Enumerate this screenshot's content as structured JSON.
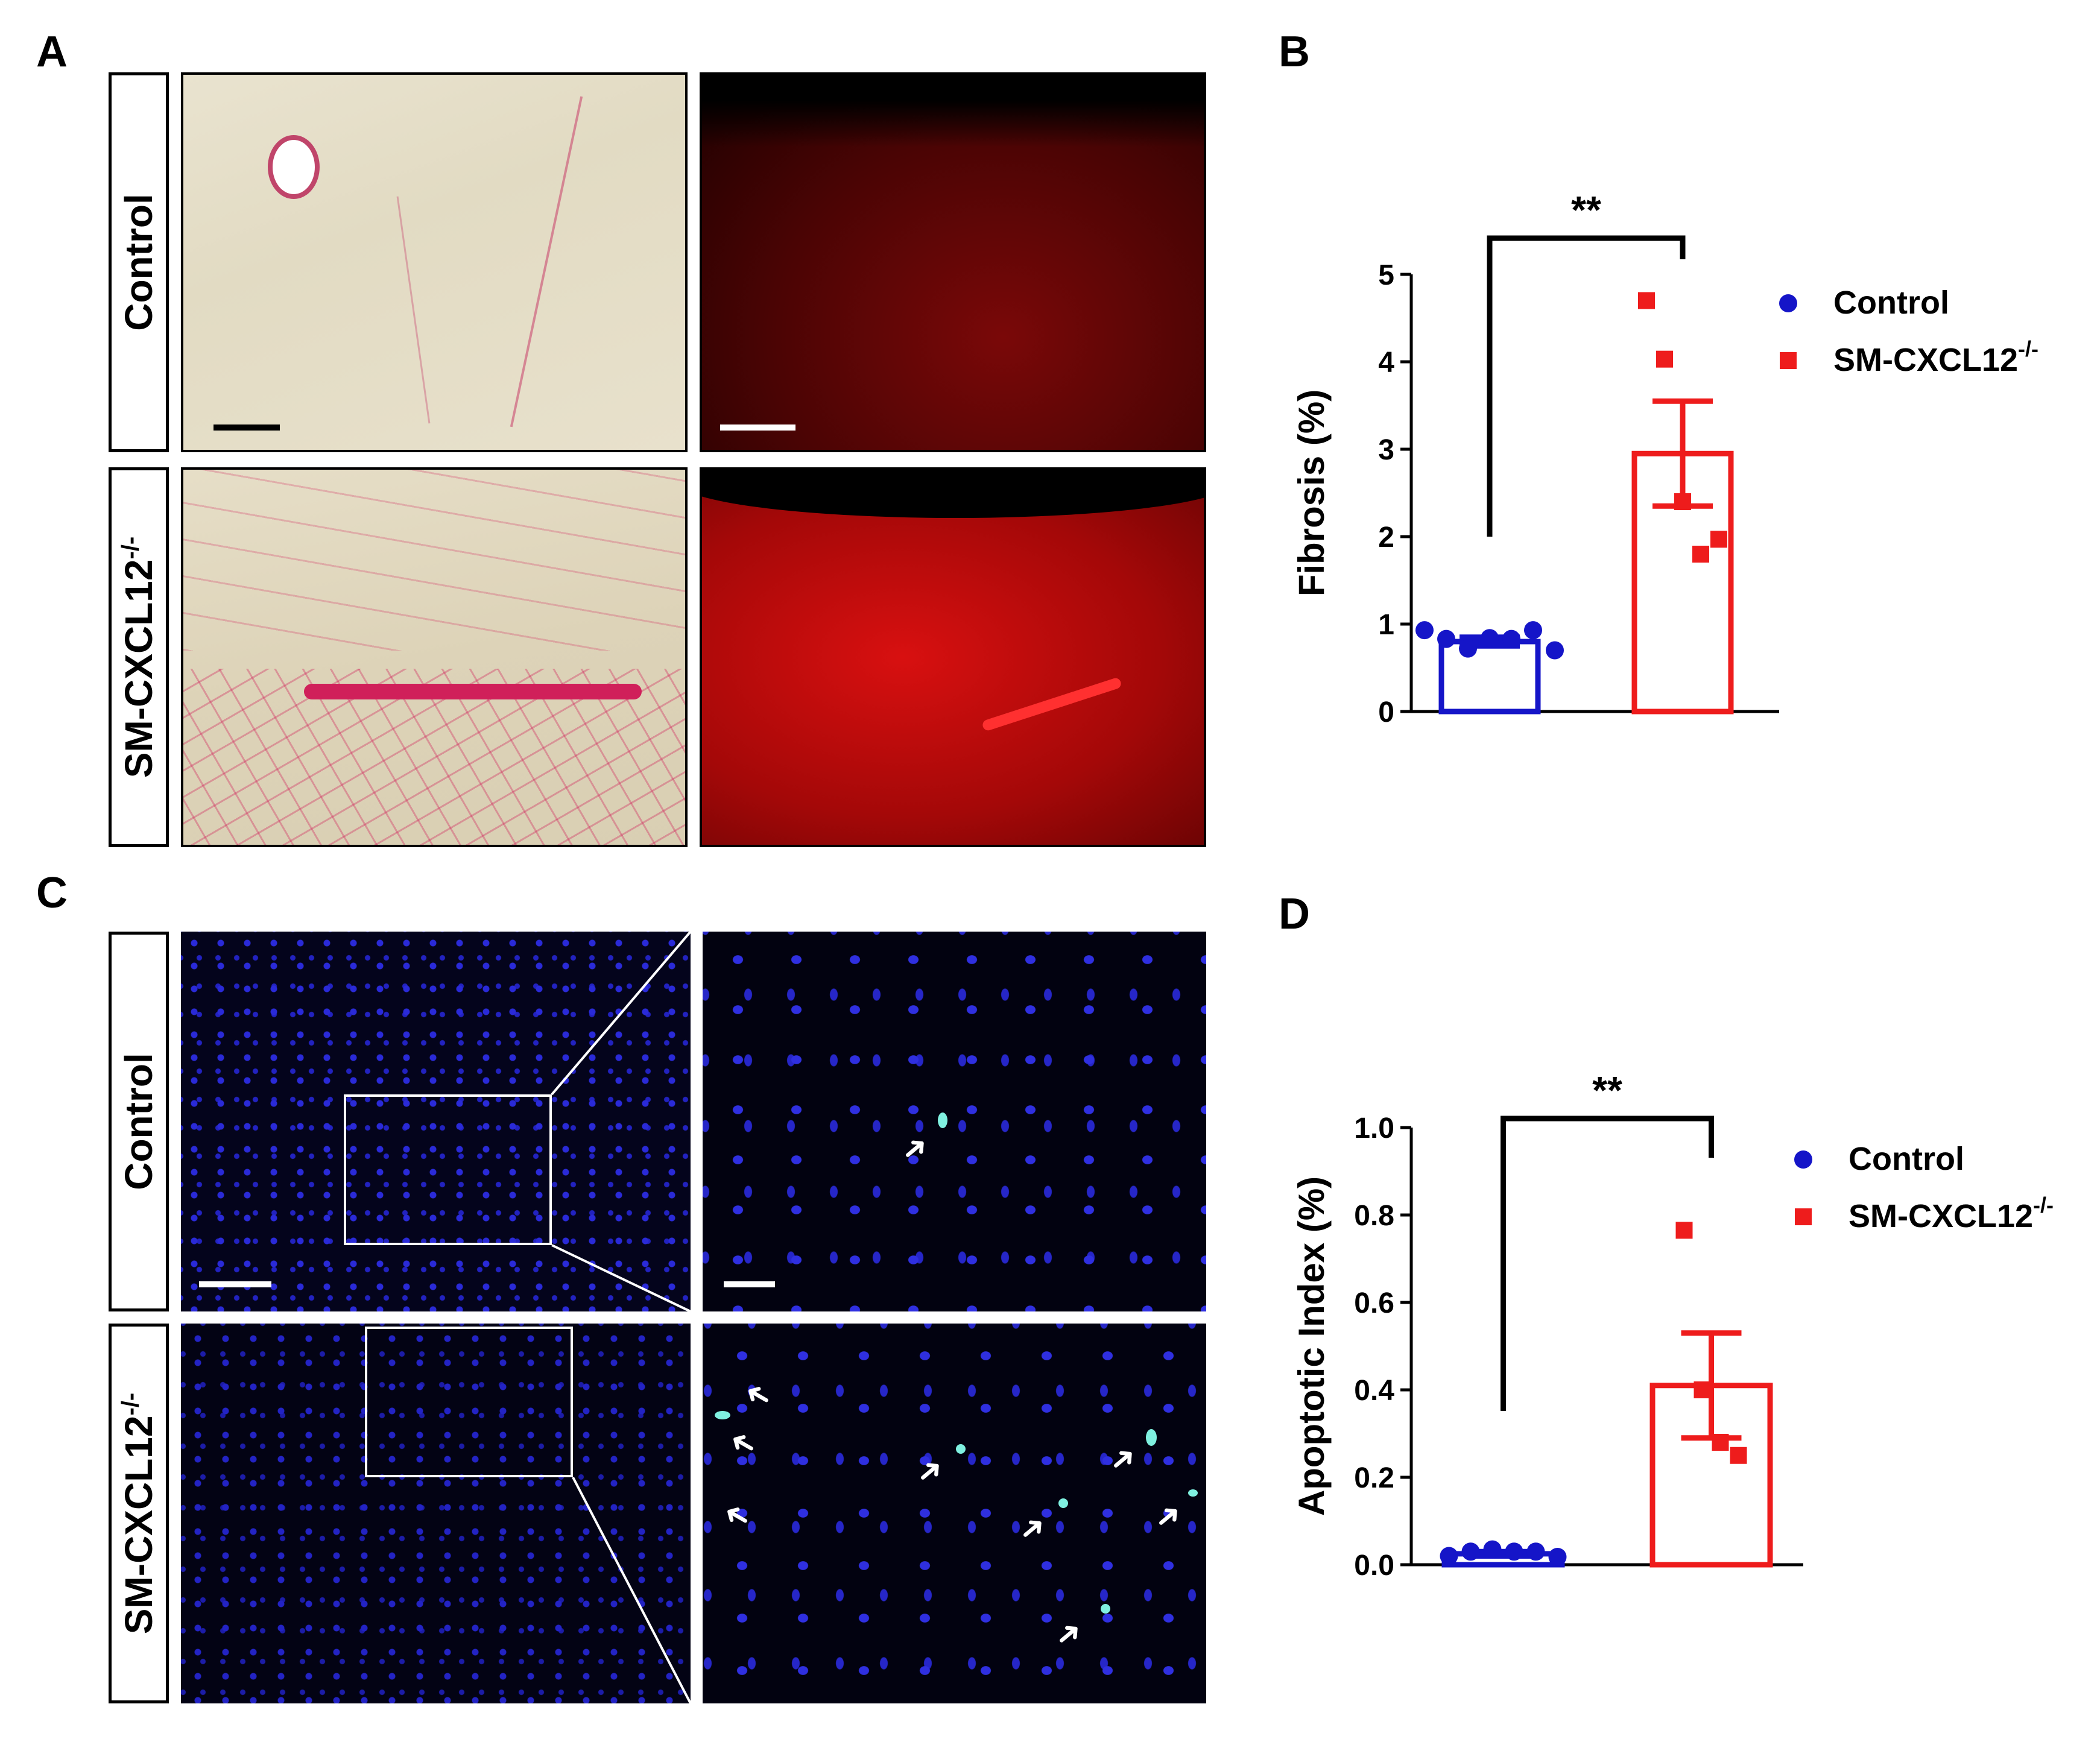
{
  "panels": {
    "a": "A",
    "b": "B",
    "c": "C",
    "d": "D"
  },
  "row_labels": {
    "control": "Control",
    "knockout": "SM-CXCL12",
    "knockout_sup": "-/-"
  },
  "colors": {
    "control": "#1515c8",
    "knockout": "#ee1c1c"
  },
  "micrographs": {
    "a_top_left": "picrosirius-red-control",
    "a_top_right": "collagen-fluorescence-control",
    "a_bottom_left": "picrosirius-red-knockout",
    "a_bottom_right": "collagen-fluorescence-knockout",
    "c_top_left": "tunel-dapi-control-overview",
    "c_top_right": "tunel-dapi-control-zoom",
    "c_bottom_left": "tunel-dapi-knockout-overview",
    "c_bottom_right": "tunel-dapi-knockout-zoom"
  },
  "chart_data": [
    {
      "panel": "B",
      "type": "bar",
      "ylabel": "Fibrosis (%)",
      "ylim": [
        0,
        5
      ],
      "yticks": [
        "0",
        "1",
        "2",
        "3",
        "4",
        "5"
      ],
      "significance": "**",
      "legend": "right",
      "series": [
        {
          "name": "Control",
          "sup": "",
          "mean": 0.8,
          "sem": 0.05,
          "points": [
            0.93,
            0.83,
            0.72,
            0.84,
            0.83,
            0.93,
            0.7
          ]
        },
        {
          "name": "SM-CXCL12",
          "sup": "-/-",
          "mean": 2.95,
          "sem": 0.6,
          "points": [
            4.7,
            4.03,
            2.4,
            1.8,
            1.97
          ]
        }
      ]
    },
    {
      "panel": "D",
      "type": "bar",
      "ylabel": "Apoptotic Index (%)",
      "ylim": [
        0,
        1.0
      ],
      "yticks": [
        "0.0",
        "0.2",
        "0.4",
        "0.6",
        "0.8",
        "1.0"
      ],
      "significance": "**",
      "legend": "right",
      "series": [
        {
          "name": "Control",
          "sup": "",
          "mean": 0.025,
          "sem": 0.005,
          "points": [
            0.02,
            0.03,
            0.035,
            0.03,
            0.03,
            0.018
          ]
        },
        {
          "name": "SM-CXCL12",
          "sup": "-/-",
          "mean": 0.41,
          "sem": 0.12,
          "points": [
            0.765,
            0.4,
            0.28,
            0.25
          ]
        }
      ]
    }
  ]
}
